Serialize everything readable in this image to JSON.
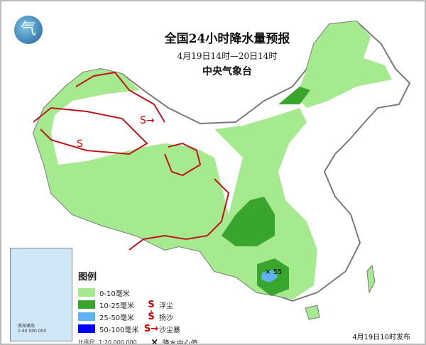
{
  "title": "全国24小时降水量预报",
  "period": "4月19日14时—20日14时",
  "agency": "中央气象台",
  "logo_text": "气",
  "legend": {
    "title": "图例",
    "precip": [
      {
        "label": "0-10毫米",
        "color": "#a6ea8f"
      },
      {
        "label": "10-25毫米",
        "color": "#3aa52c"
      },
      {
        "label": "25-50毫米",
        "color": "#5eb3f0"
      },
      {
        "label": "50-100毫米",
        "color": "#0000ff"
      }
    ],
    "symbols": [
      {
        "glyph": "S",
        "label": "浮尘"
      },
      {
        "glyph": "Ṡ",
        "label": "扬沙"
      },
      {
        "glyph": "S→",
        "label": "沙尘暴"
      },
      {
        "glyph": "×",
        "label": "降水中心值"
      }
    ],
    "scale_label": "比例尺",
    "scale": "1:20 000 000"
  },
  "inset": {
    "label": "南海诸岛",
    "scale": "1:40 000 000"
  },
  "max_center": {
    "value": "55"
  },
  "issued": "4月19日10时发布",
  "colors": {
    "dust_line": "#c0141b",
    "border": "#7a7a7a",
    "sea": "#cfe7f7"
  }
}
